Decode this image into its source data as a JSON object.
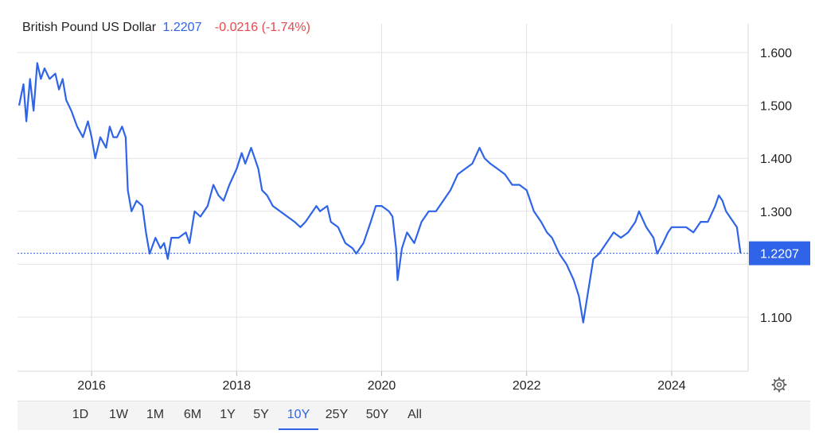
{
  "header": {
    "title": "British Pound US Dollar",
    "price": "1.2207",
    "change": "-0.0216 (-1.74%)"
  },
  "colors": {
    "line": "#2f64e8",
    "down": "#e5484d",
    "grid": "#e3e3e3"
  },
  "range_buttons": [
    {
      "label": "1D",
      "active": false
    },
    {
      "label": "1W",
      "active": false
    },
    {
      "label": "1M",
      "active": false
    },
    {
      "label": "6M",
      "active": false
    },
    {
      "label": "1Y",
      "active": false
    },
    {
      "label": "5Y",
      "active": false
    },
    {
      "label": "10Y",
      "active": true
    },
    {
      "label": "25Y",
      "active": false
    },
    {
      "label": "50Y",
      "active": false
    },
    {
      "label": "All",
      "active": false
    }
  ],
  "settings_icon": "gear-icon",
  "chart_data": {
    "type": "line",
    "title": "British Pound US Dollar",
    "y_tick_labels": [
      "1.600",
      "1.500",
      "1.400",
      "1.300",
      "1.100"
    ],
    "y_ticks": [
      1.6,
      1.5,
      1.4,
      1.3,
      1.2,
      1.1
    ],
    "x_tick_labels": [
      "2016",
      "2018",
      "2020",
      "2022",
      "2024"
    ],
    "x_ticks": [
      2016,
      2018,
      2020,
      2022,
      2024
    ],
    "ylim": [
      1.0,
      1.6
    ],
    "xlim": [
      2015.0,
      2025.0
    ],
    "grid": true,
    "last_value_label": "1.2207",
    "last_value": 1.2207,
    "series": [
      {
        "x": [
          2015.0,
          2015.06,
          2015.1,
          2015.15,
          2015.2,
          2015.25,
          2015.3,
          2015.35,
          2015.42,
          2015.5,
          2015.55,
          2015.6,
          2015.65,
          2015.72,
          2015.8,
          2015.88,
          2015.95,
          2016.0,
          2016.05,
          2016.12,
          2016.2,
          2016.25,
          2016.3,
          2016.35,
          2016.42,
          2016.47,
          2016.5,
          2016.55,
          2016.62,
          2016.7,
          2016.75,
          2016.8,
          2016.88,
          2016.95,
          2017.0,
          2017.05,
          2017.1,
          2017.2,
          2017.3,
          2017.35,
          2017.42,
          2017.5,
          2017.6,
          2017.68,
          2017.75,
          2017.82,
          2017.9,
          2018.0,
          2018.07,
          2018.12,
          2018.2,
          2018.25,
          2018.3,
          2018.35,
          2018.42,
          2018.5,
          2018.6,
          2018.7,
          2018.8,
          2018.88,
          2018.95,
          2019.0,
          2019.1,
          2019.15,
          2019.25,
          2019.3,
          2019.4,
          2019.5,
          2019.6,
          2019.65,
          2019.75,
          2019.85,
          2019.92,
          2020.0,
          2020.1,
          2020.15,
          2020.2,
          2020.22,
          2020.28,
          2020.35,
          2020.45,
          2020.55,
          2020.65,
          2020.75,
          2020.85,
          2020.95,
          2021.05,
          2021.15,
          2021.25,
          2021.35,
          2021.42,
          2021.5,
          2021.6,
          2021.7,
          2021.8,
          2021.9,
          2022.0,
          2022.1,
          2022.2,
          2022.28,
          2022.35,
          2022.45,
          2022.55,
          2022.65,
          2022.72,
          2022.78,
          2022.85,
          2022.92,
          2023.0,
          2023.1,
          2023.2,
          2023.3,
          2023.4,
          2023.5,
          2023.55,
          2023.65,
          2023.75,
          2023.8,
          2023.88,
          2023.95,
          2024.0,
          2024.1,
          2024.2,
          2024.3,
          2024.4,
          2024.5,
          2024.6,
          2024.65,
          2024.7,
          2024.75,
          2024.85,
          2024.9,
          2024.95
        ],
        "values": [
          1.5,
          1.54,
          1.47,
          1.55,
          1.49,
          1.58,
          1.55,
          1.57,
          1.55,
          1.56,
          1.53,
          1.55,
          1.51,
          1.49,
          1.46,
          1.44,
          1.47,
          1.44,
          1.4,
          1.44,
          1.42,
          1.46,
          1.44,
          1.44,
          1.46,
          1.44,
          1.34,
          1.3,
          1.32,
          1.31,
          1.26,
          1.22,
          1.25,
          1.23,
          1.24,
          1.21,
          1.25,
          1.25,
          1.26,
          1.24,
          1.3,
          1.29,
          1.31,
          1.35,
          1.33,
          1.32,
          1.35,
          1.38,
          1.41,
          1.39,
          1.42,
          1.4,
          1.38,
          1.34,
          1.33,
          1.31,
          1.3,
          1.29,
          1.28,
          1.27,
          1.28,
          1.29,
          1.31,
          1.3,
          1.31,
          1.28,
          1.27,
          1.24,
          1.23,
          1.22,
          1.24,
          1.28,
          1.31,
          1.31,
          1.3,
          1.29,
          1.23,
          1.17,
          1.23,
          1.26,
          1.24,
          1.28,
          1.3,
          1.3,
          1.32,
          1.34,
          1.37,
          1.38,
          1.39,
          1.42,
          1.4,
          1.39,
          1.38,
          1.37,
          1.35,
          1.35,
          1.34,
          1.3,
          1.28,
          1.26,
          1.25,
          1.22,
          1.2,
          1.17,
          1.14,
          1.09,
          1.15,
          1.21,
          1.22,
          1.24,
          1.26,
          1.25,
          1.26,
          1.28,
          1.3,
          1.27,
          1.25,
          1.22,
          1.24,
          1.26,
          1.27,
          1.27,
          1.27,
          1.26,
          1.28,
          1.28,
          1.31,
          1.33,
          1.32,
          1.3,
          1.28,
          1.27,
          1.2207
        ]
      }
    ]
  }
}
